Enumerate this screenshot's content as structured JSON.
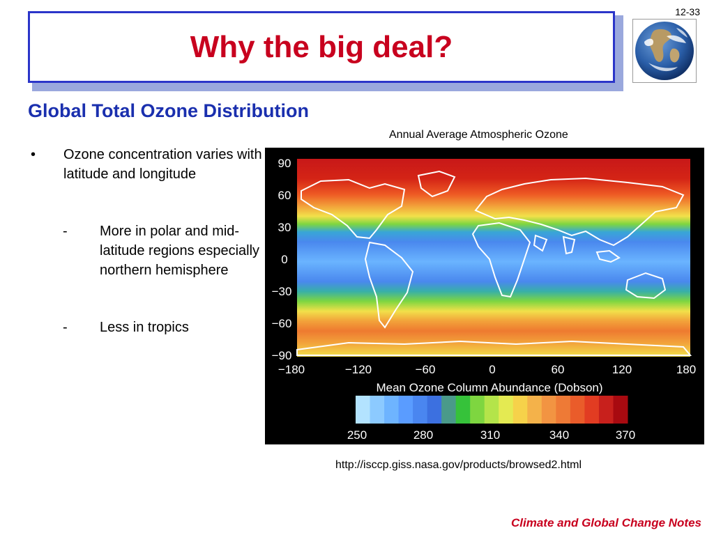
{
  "slide": {
    "number": "12-33",
    "title": "Why the big deal?",
    "subtitle": "Global Total Ozone Distribution",
    "bullets": [
      {
        "text": "Ozone concentration varies with latitude and longitude",
        "subitems": [
          "More in polar and mid-latitude regions especially northern hemisphere",
          "Less in tropics"
        ]
      }
    ],
    "bullet_mark": "•",
    "dash_mark": "-",
    "footer": "Climate and Global Change Notes"
  },
  "map_figure": {
    "caption": "Annual Average Atmospheric Ozone",
    "latitude_labels": [
      "90",
      "60",
      "30",
      "0",
      "−30",
      "−60",
      "−90"
    ],
    "longitude_labels": [
      "−180",
      "−120",
      "−60",
      "0",
      "60",
      "120",
      "180"
    ],
    "colorbar_title": "Mean Ozone Column Abundance (Dobson)",
    "colorbar_labels": [
      "250",
      "280",
      "310",
      "340",
      "370"
    ],
    "colorbar_colors": [
      "#b3e3ff",
      "#8ccaff",
      "#6eb4ff",
      "#5a9cff",
      "#4a86f0",
      "#3c70e0",
      "#4a9a8a",
      "#36c23a",
      "#7ed640",
      "#b4e44a",
      "#e4ea52",
      "#f6d24a",
      "#f4b24a",
      "#f29442",
      "#ee7a36",
      "#ea5c2a",
      "#e23c22",
      "#c8201c",
      "#a80a10"
    ],
    "url": "http://isccp.giss.nasa.gov/products/browsed2.html"
  }
}
